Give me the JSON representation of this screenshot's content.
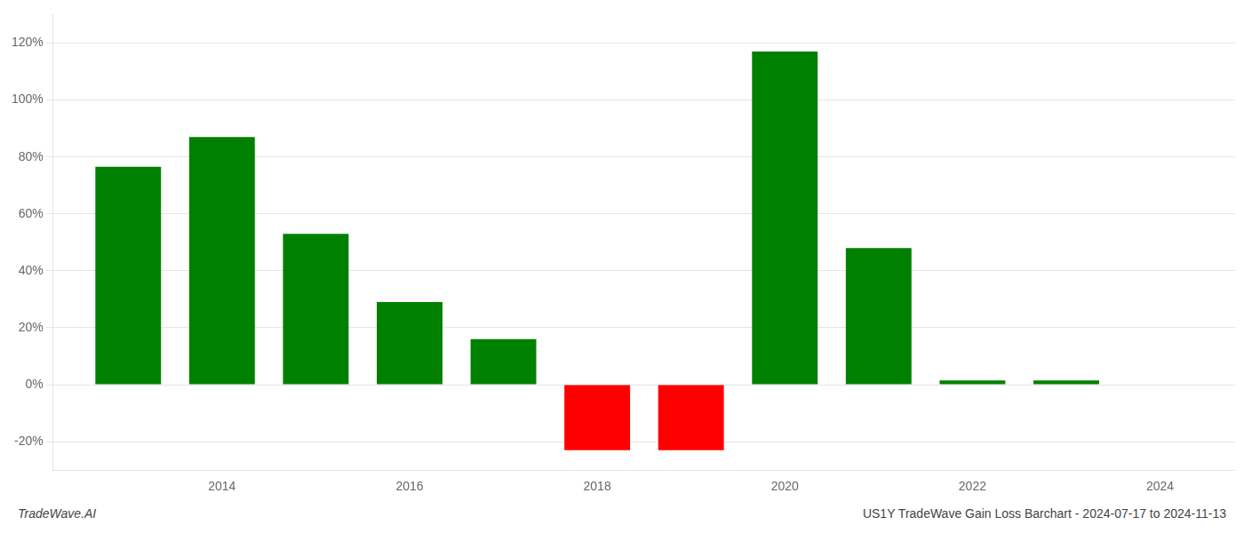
{
  "chart_data": {
    "type": "bar",
    "x": [
      2013,
      2014,
      2015,
      2016,
      2017,
      2018,
      2019,
      2020,
      2021,
      2022,
      2023
    ],
    "values": [
      76.5,
      87.0,
      53.0,
      29.0,
      16.0,
      -23.0,
      -23.0,
      117.0,
      48.0,
      1.5,
      1.5
    ],
    "colors": [
      "#008000",
      "#008000",
      "#008000",
      "#008000",
      "#008000",
      "#ff0000",
      "#ff0000",
      "#008000",
      "#008000",
      "#008000",
      "#008000"
    ],
    "xlim": [
      2012.2,
      2024.8
    ],
    "xticks": [
      2014,
      2016,
      2018,
      2020,
      2022,
      2024
    ],
    "ylim": [
      -30,
      130
    ],
    "yticks": [
      {
        "value": -20,
        "label": "-20%"
      },
      {
        "value": 0,
        "label": "0%"
      },
      {
        "value": 20,
        "label": "20%"
      },
      {
        "value": 40,
        "label": "40%"
      },
      {
        "value": 60,
        "label": "60%"
      },
      {
        "value": 80,
        "label": "80%"
      },
      {
        "value": 100,
        "label": "100%"
      },
      {
        "value": 120,
        "label": "120%"
      }
    ],
    "grid": "y",
    "annotations": [
      "TradeWave.AI",
      "US1Y TradeWave Gain Loss Barchart - 2024-07-17 to 2024-11-13"
    ]
  }
}
